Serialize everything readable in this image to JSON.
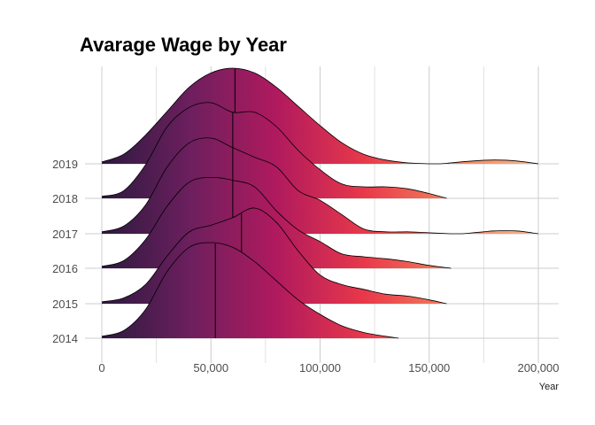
{
  "chart_data": {
    "type": "ridgeline",
    "title": "Avarage Wage by Year",
    "xlabel": "Year",
    "ylabel": "",
    "xlim": [
      0,
      210000
    ],
    "x_ticks": [
      0,
      50000,
      100000,
      150000,
      200000
    ],
    "x_tick_labels": [
      "0",
      "50,000",
      "100,000",
      "150,000",
      "200,000"
    ],
    "categories": [
      "2014",
      "2015",
      "2016",
      "2017",
      "2018",
      "2019"
    ],
    "grid": true,
    "legend": "none",
    "colormap": [
      "#2b1a3f",
      "#6c1f5e",
      "#b01a5e",
      "#e8384a",
      "#f3805a",
      "#f5b88b"
    ],
    "series": [
      {
        "name": "2014",
        "median": 52000,
        "x": [
          0,
          10000,
          20000,
          30000,
          40000,
          50000,
          60000,
          70000,
          80000,
          90000,
          100000,
          110000,
          120000,
          130000,
          136000
        ],
        "density": [
          0.02,
          0.08,
          0.3,
          0.7,
          0.95,
          1.0,
          0.95,
          0.8,
          0.6,
          0.4,
          0.25,
          0.13,
          0.06,
          0.02,
          0.0
        ]
      },
      {
        "name": "2015",
        "median": 64000,
        "x": [
          0,
          10000,
          20000,
          30000,
          40000,
          50000,
          60000,
          70000,
          80000,
          90000,
          100000,
          110000,
          120000,
          130000,
          140000,
          150000,
          158000
        ],
        "density": [
          0.02,
          0.06,
          0.2,
          0.5,
          0.75,
          0.82,
          0.9,
          1.0,
          0.85,
          0.55,
          0.3,
          0.2,
          0.15,
          0.1,
          0.08,
          0.04,
          0.0
        ]
      },
      {
        "name": "2016",
        "median": 60000,
        "x": [
          0,
          10000,
          20000,
          30000,
          40000,
          50000,
          60000,
          70000,
          80000,
          90000,
          100000,
          110000,
          120000,
          130000,
          140000,
          150000,
          160000
        ],
        "density": [
          0.02,
          0.08,
          0.3,
          0.65,
          0.9,
          0.95,
          0.92,
          0.85,
          0.6,
          0.4,
          0.28,
          0.15,
          0.12,
          0.1,
          0.07,
          0.03,
          0.0
        ]
      },
      {
        "name": "2017",
        "median": 60000,
        "x": [
          0,
          10000,
          20000,
          30000,
          40000,
          50000,
          60000,
          70000,
          80000,
          90000,
          100000,
          110000,
          120000,
          130000,
          140000,
          150000,
          160000,
          165000,
          170000,
          175000,
          180000,
          190000,
          200000
        ],
        "density": [
          0.02,
          0.08,
          0.3,
          0.7,
          0.95,
          1.0,
          0.9,
          0.8,
          0.7,
          0.45,
          0.35,
          0.2,
          0.05,
          0.02,
          0.02,
          0.01,
          0.0,
          0.0,
          0.01,
          0.02,
          0.03,
          0.03,
          0.0
        ]
      },
      {
        "name": "2018",
        "median": 60000,
        "x": [
          0,
          10000,
          20000,
          30000,
          40000,
          50000,
          60000,
          70000,
          80000,
          90000,
          100000,
          110000,
          120000,
          130000,
          140000,
          150000,
          158000
        ],
        "density": [
          0.02,
          0.08,
          0.35,
          0.75,
          0.95,
          1.0,
          0.9,
          0.9,
          0.75,
          0.5,
          0.3,
          0.15,
          0.12,
          0.12,
          0.1,
          0.05,
          0.0
        ]
      },
      {
        "name": "2019",
        "median": 61000,
        "x": [
          0,
          10000,
          20000,
          30000,
          40000,
          50000,
          60000,
          70000,
          80000,
          90000,
          100000,
          110000,
          120000,
          130000,
          140000,
          150000,
          155000,
          160000,
          170000,
          180000,
          190000,
          200000
        ],
        "density": [
          0.02,
          0.1,
          0.3,
          0.55,
          0.8,
          0.95,
          1.0,
          0.95,
          0.8,
          0.6,
          0.4,
          0.22,
          0.1,
          0.04,
          0.01,
          0.0,
          0.0,
          0.01,
          0.03,
          0.04,
          0.03,
          0.0
        ]
      }
    ]
  }
}
